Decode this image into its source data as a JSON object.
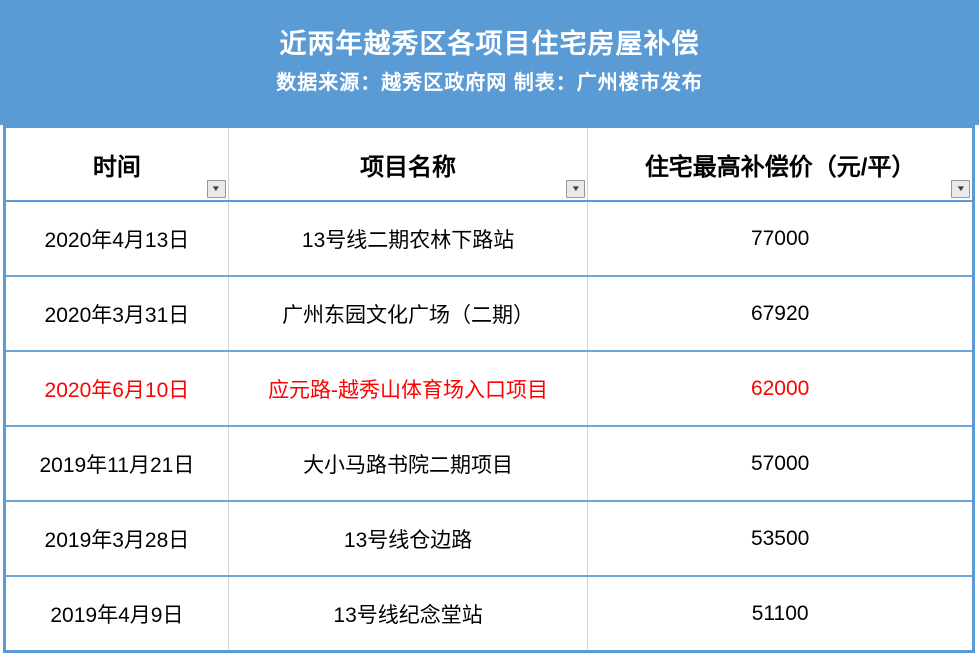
{
  "banner": {
    "title": "近两年越秀区各项目住宅房屋补偿",
    "subtitle": "数据来源：越秀区政府网 制表：广州楼市发布",
    "background_color": "#5B9BD5",
    "text_color": "#FFFFFF"
  },
  "table": {
    "columns": [
      {
        "label": "时间"
      },
      {
        "label": "项目名称"
      },
      {
        "label": "住宅最高补偿价（元/平）"
      }
    ],
    "filter_icon": "▼",
    "rows": [
      {
        "date": "2020年4月13日",
        "project": "13号线二期农林下路站",
        "price": "77000",
        "highlighted": false
      },
      {
        "date": "2020年3月31日",
        "project": "广州东园文化广场（二期）",
        "price": "67920",
        "highlighted": false
      },
      {
        "date": "2020年6月10日",
        "project": "应元路-越秀山体育场入口项目",
        "price": "62000",
        "highlighted": true
      },
      {
        "date": "2019年11月21日",
        "project": "大小马路书院二期项目",
        "price": "57000",
        "highlighted": false
      },
      {
        "date": "2019年3月28日",
        "project": "13号线仓边路",
        "price": "53500",
        "highlighted": false
      },
      {
        "date": "2019年4月9日",
        "project": "13号线纪念堂站",
        "price": "51100",
        "highlighted": false
      }
    ],
    "highlight_color": "#FF0000",
    "border_color": "#5B9BD5",
    "grid_color": "#D2D2D2"
  },
  "chart_data": {
    "type": "table",
    "title": "近两年越秀区各项目住宅房屋补偿",
    "subtitle": "数据来源：越秀区政府网 制表：广州楼市发布",
    "columns": [
      "时间",
      "项目名称",
      "住宅最高补偿价（元/平）"
    ],
    "rows": [
      [
        "2020年4月13日",
        "13号线二期农林下路站",
        77000
      ],
      [
        "2020年3月31日",
        "广州东园文化广场（二期）",
        67920
      ],
      [
        "2020年6月10日",
        "应元路-越秀山体育场入口项目",
        62000
      ],
      [
        "2019年11月21日",
        "大小马路书院二期项目",
        57000
      ],
      [
        "2019年3月28日",
        "13号线仓边路",
        53500
      ],
      [
        "2019年4月9日",
        "13号线纪念堂站",
        51100
      ]
    ],
    "highlighted_row_index": 2,
    "highlight_color": "#FF0000"
  }
}
